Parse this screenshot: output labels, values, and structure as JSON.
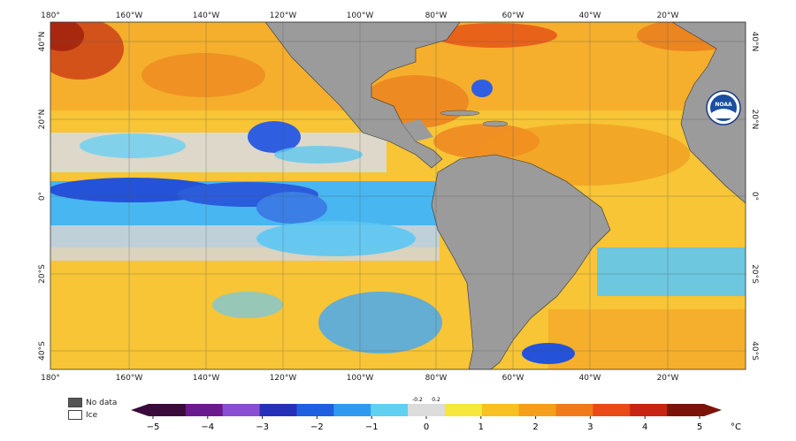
{
  "map": {
    "top_labels": [
      "180°",
      "160°W",
      "140°W",
      "120°W",
      "100°W",
      "80°W",
      "60°W",
      "40°W",
      "20°W"
    ],
    "bottom_labels": [
      "180°",
      "160°W",
      "140°W",
      "120°W",
      "100°W",
      "80°W",
      "60°W",
      "40°W",
      "20°W"
    ],
    "left_labels": [
      "40°N",
      "20°N",
      "0°",
      "20°S",
      "40°S"
    ],
    "right_labels": [
      "40°N",
      "20°N",
      "0°",
      "20°S",
      "40°S"
    ],
    "logo_text": "NOAA"
  },
  "legend": {
    "no_data_label": "No data",
    "ice_label": "Ice",
    "no_data_color": "#555555",
    "ice_color": "#ffffff"
  },
  "colorbar": {
    "unit": "°C",
    "tick_labels": [
      "−5",
      "−4",
      "−3",
      "−2",
      "−1",
      "0",
      "1",
      "2",
      "3",
      "4",
      "5"
    ],
    "small_labels": [
      "-0.2",
      "0.2"
    ],
    "colors": [
      "#3a0a3a",
      "#6a1a8c",
      "#8a4fd0",
      "#2530b8",
      "#1f5fe0",
      "#2f9af0",
      "#5fd0f0",
      "#dcdcdc",
      "#f5e83a",
      "#f8c020",
      "#f59e1a",
      "#f07a1a",
      "#e84a18",
      "#c82414",
      "#7a1408"
    ]
  }
}
